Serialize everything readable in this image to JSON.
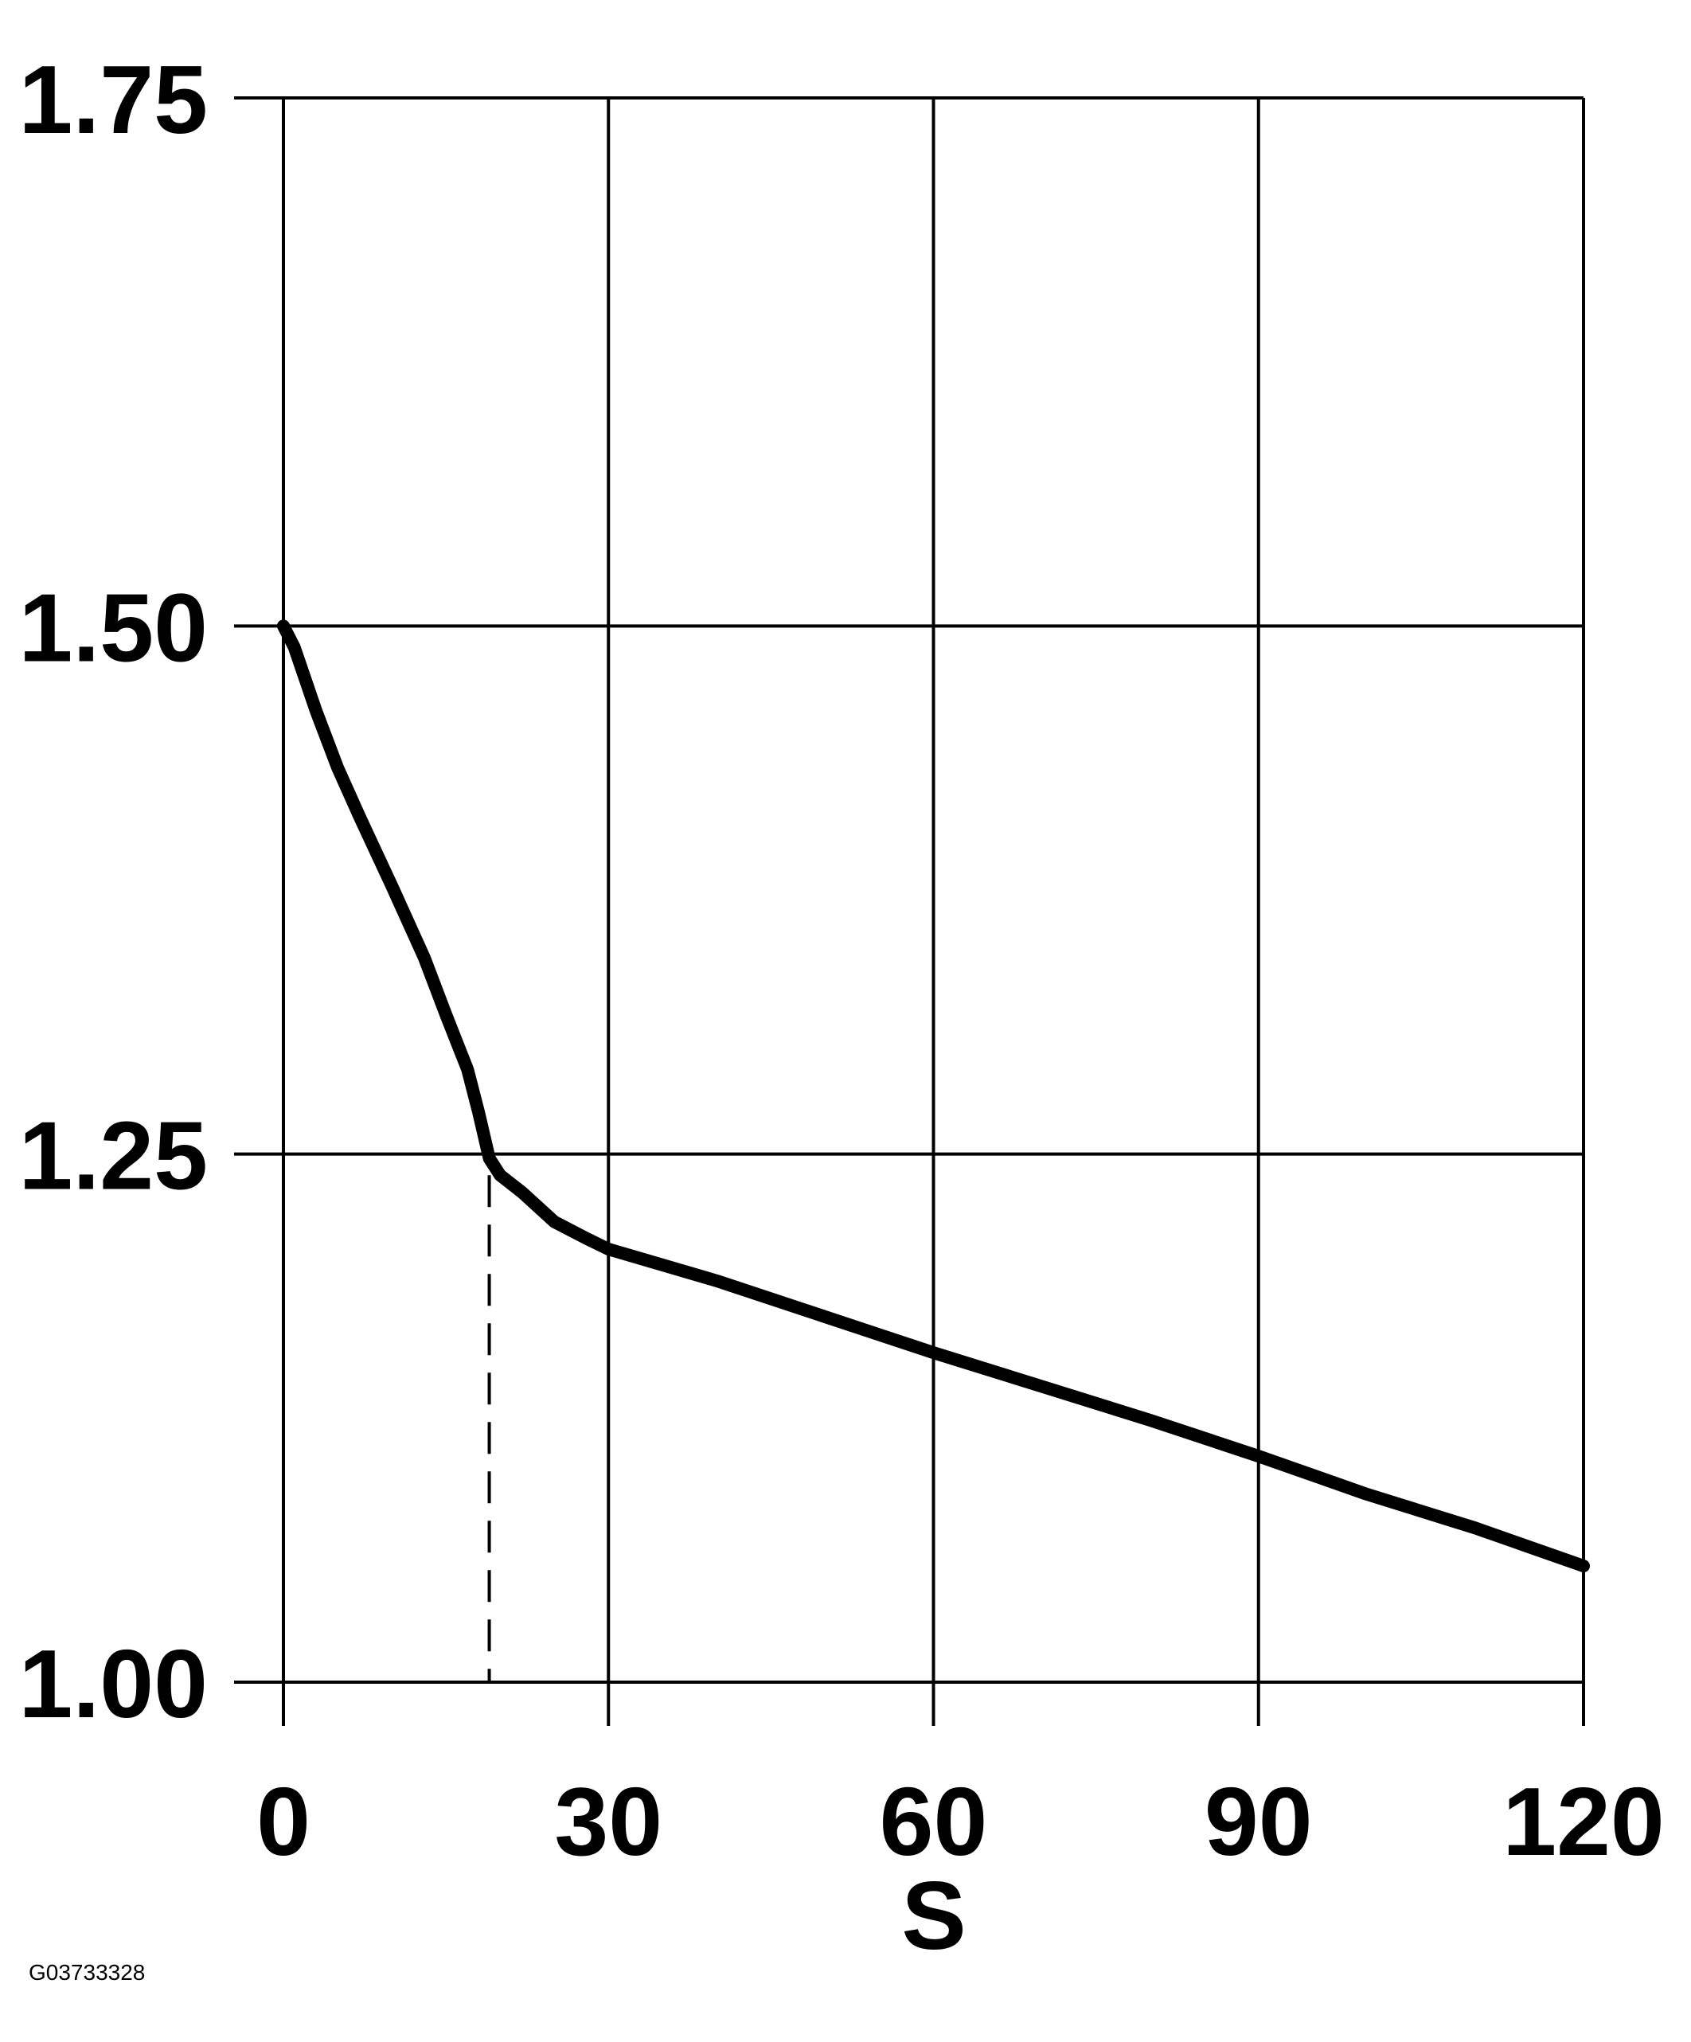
{
  "chart_data": {
    "type": "line",
    "title": "",
    "xlabel": "S",
    "ylabel": "",
    "xlim": [
      0,
      120
    ],
    "ylim": [
      1.0,
      1.75
    ],
    "x_ticks": [
      "0",
      "30",
      "60",
      "90",
      "120"
    ],
    "y_ticks": [
      "1.00",
      "1.25",
      "1.50",
      "1.75"
    ],
    "grid": true,
    "series": [
      {
        "x": [
          0,
          1,
          3,
          5,
          7,
          10,
          13,
          15,
          17,
          18,
          19,
          20,
          22,
          25,
          28,
          30,
          40,
          50,
          60,
          70,
          80,
          90,
          100,
          110,
          120
        ],
        "y": [
          1.5,
          1.49,
          1.46,
          1.433,
          1.41,
          1.377,
          1.343,
          1.316,
          1.29,
          1.27,
          1.248,
          1.24,
          1.232,
          1.218,
          1.21,
          1.205,
          1.19,
          1.173,
          1.156,
          1.14,
          1.124,
          1.107,
          1.089,
          1.073,
          1.055
        ]
      }
    ],
    "annotations": [
      {
        "type": "dashed-vertical-line",
        "x": 19,
        "y_from": 1.0,
        "y_to": 1.24
      }
    ],
    "colors": {
      "line": "#000000",
      "grid": "#000000",
      "background": "#ffffff"
    }
  },
  "figure_code": "G03733328"
}
